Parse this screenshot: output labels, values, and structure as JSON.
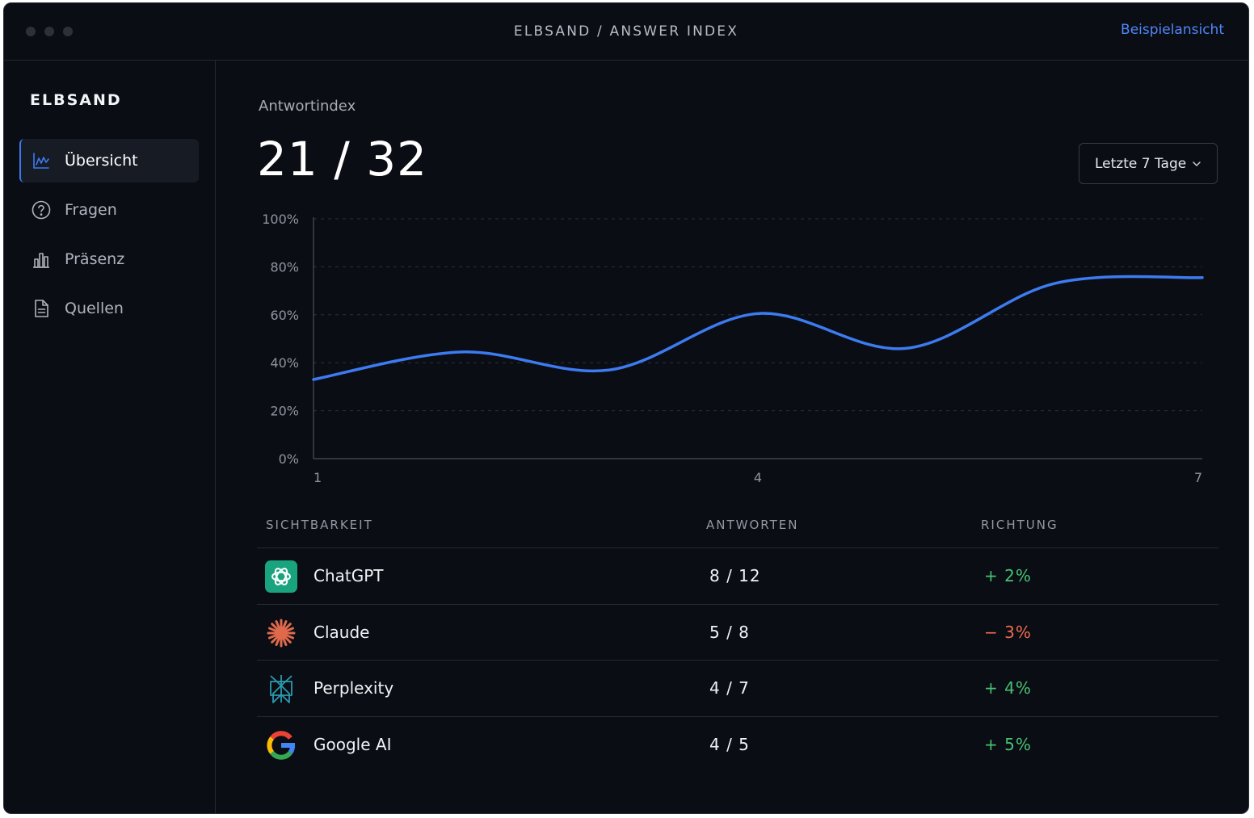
{
  "window": {
    "title": "ELBSAND / ANSWER INDEX",
    "link": "Beispielansicht"
  },
  "sidebar": {
    "brand": "ELBSAND",
    "items": [
      {
        "label": "Übersicht",
        "icon": "chart-line-icon",
        "active": true
      },
      {
        "label": "Fragen",
        "icon": "question-circle-icon",
        "active": false
      },
      {
        "label": "Präsenz",
        "icon": "bar-chart-icon",
        "active": false
      },
      {
        "label": "Quellen",
        "icon": "document-icon",
        "active": false
      }
    ]
  },
  "main": {
    "eyebrow": "Antwortindex",
    "kpi": "21 / 32",
    "range_select": "Letzte 7 Tage"
  },
  "colors": {
    "accent": "#3d7bf0",
    "line": "#3d7bf0",
    "positive": "#47c272",
    "negative": "#ef6a4f",
    "background": "#0a0d14"
  },
  "chart_data": {
    "type": "line",
    "x": [
      1,
      2,
      3,
      4,
      5,
      6,
      7
    ],
    "x_ticks": [
      "1",
      "4",
      "7"
    ],
    "y_ticks": [
      "0%",
      "20%",
      "40%",
      "60%",
      "80%",
      "100%"
    ],
    "ylim": [
      0,
      100
    ],
    "series": [
      {
        "values": [
          33,
          44.5,
          37,
          60.5,
          46,
          73,
          75.5
        ]
      }
    ],
    "grid": true
  },
  "table": {
    "headers": [
      "SICHTBARKEIT",
      "ANTWORTEN",
      "RICHTUNG"
    ],
    "rows": [
      {
        "name": "ChatGPT",
        "icon": "chatgpt-logo-icon",
        "answers": "8 / 12",
        "direction": "+ 2%",
        "trend": "up"
      },
      {
        "name": "Claude",
        "icon": "claude-logo-icon",
        "answers": "5 / 8",
        "direction": "− 3%",
        "trend": "down"
      },
      {
        "name": "Perplexity",
        "icon": "perplexity-logo-icon",
        "answers": "4 / 7",
        "direction": "+ 4%",
        "trend": "up"
      },
      {
        "name": "Google AI",
        "icon": "google-logo-icon",
        "answers": "4 / 5",
        "direction": "+ 5%",
        "trend": "up"
      }
    ]
  }
}
